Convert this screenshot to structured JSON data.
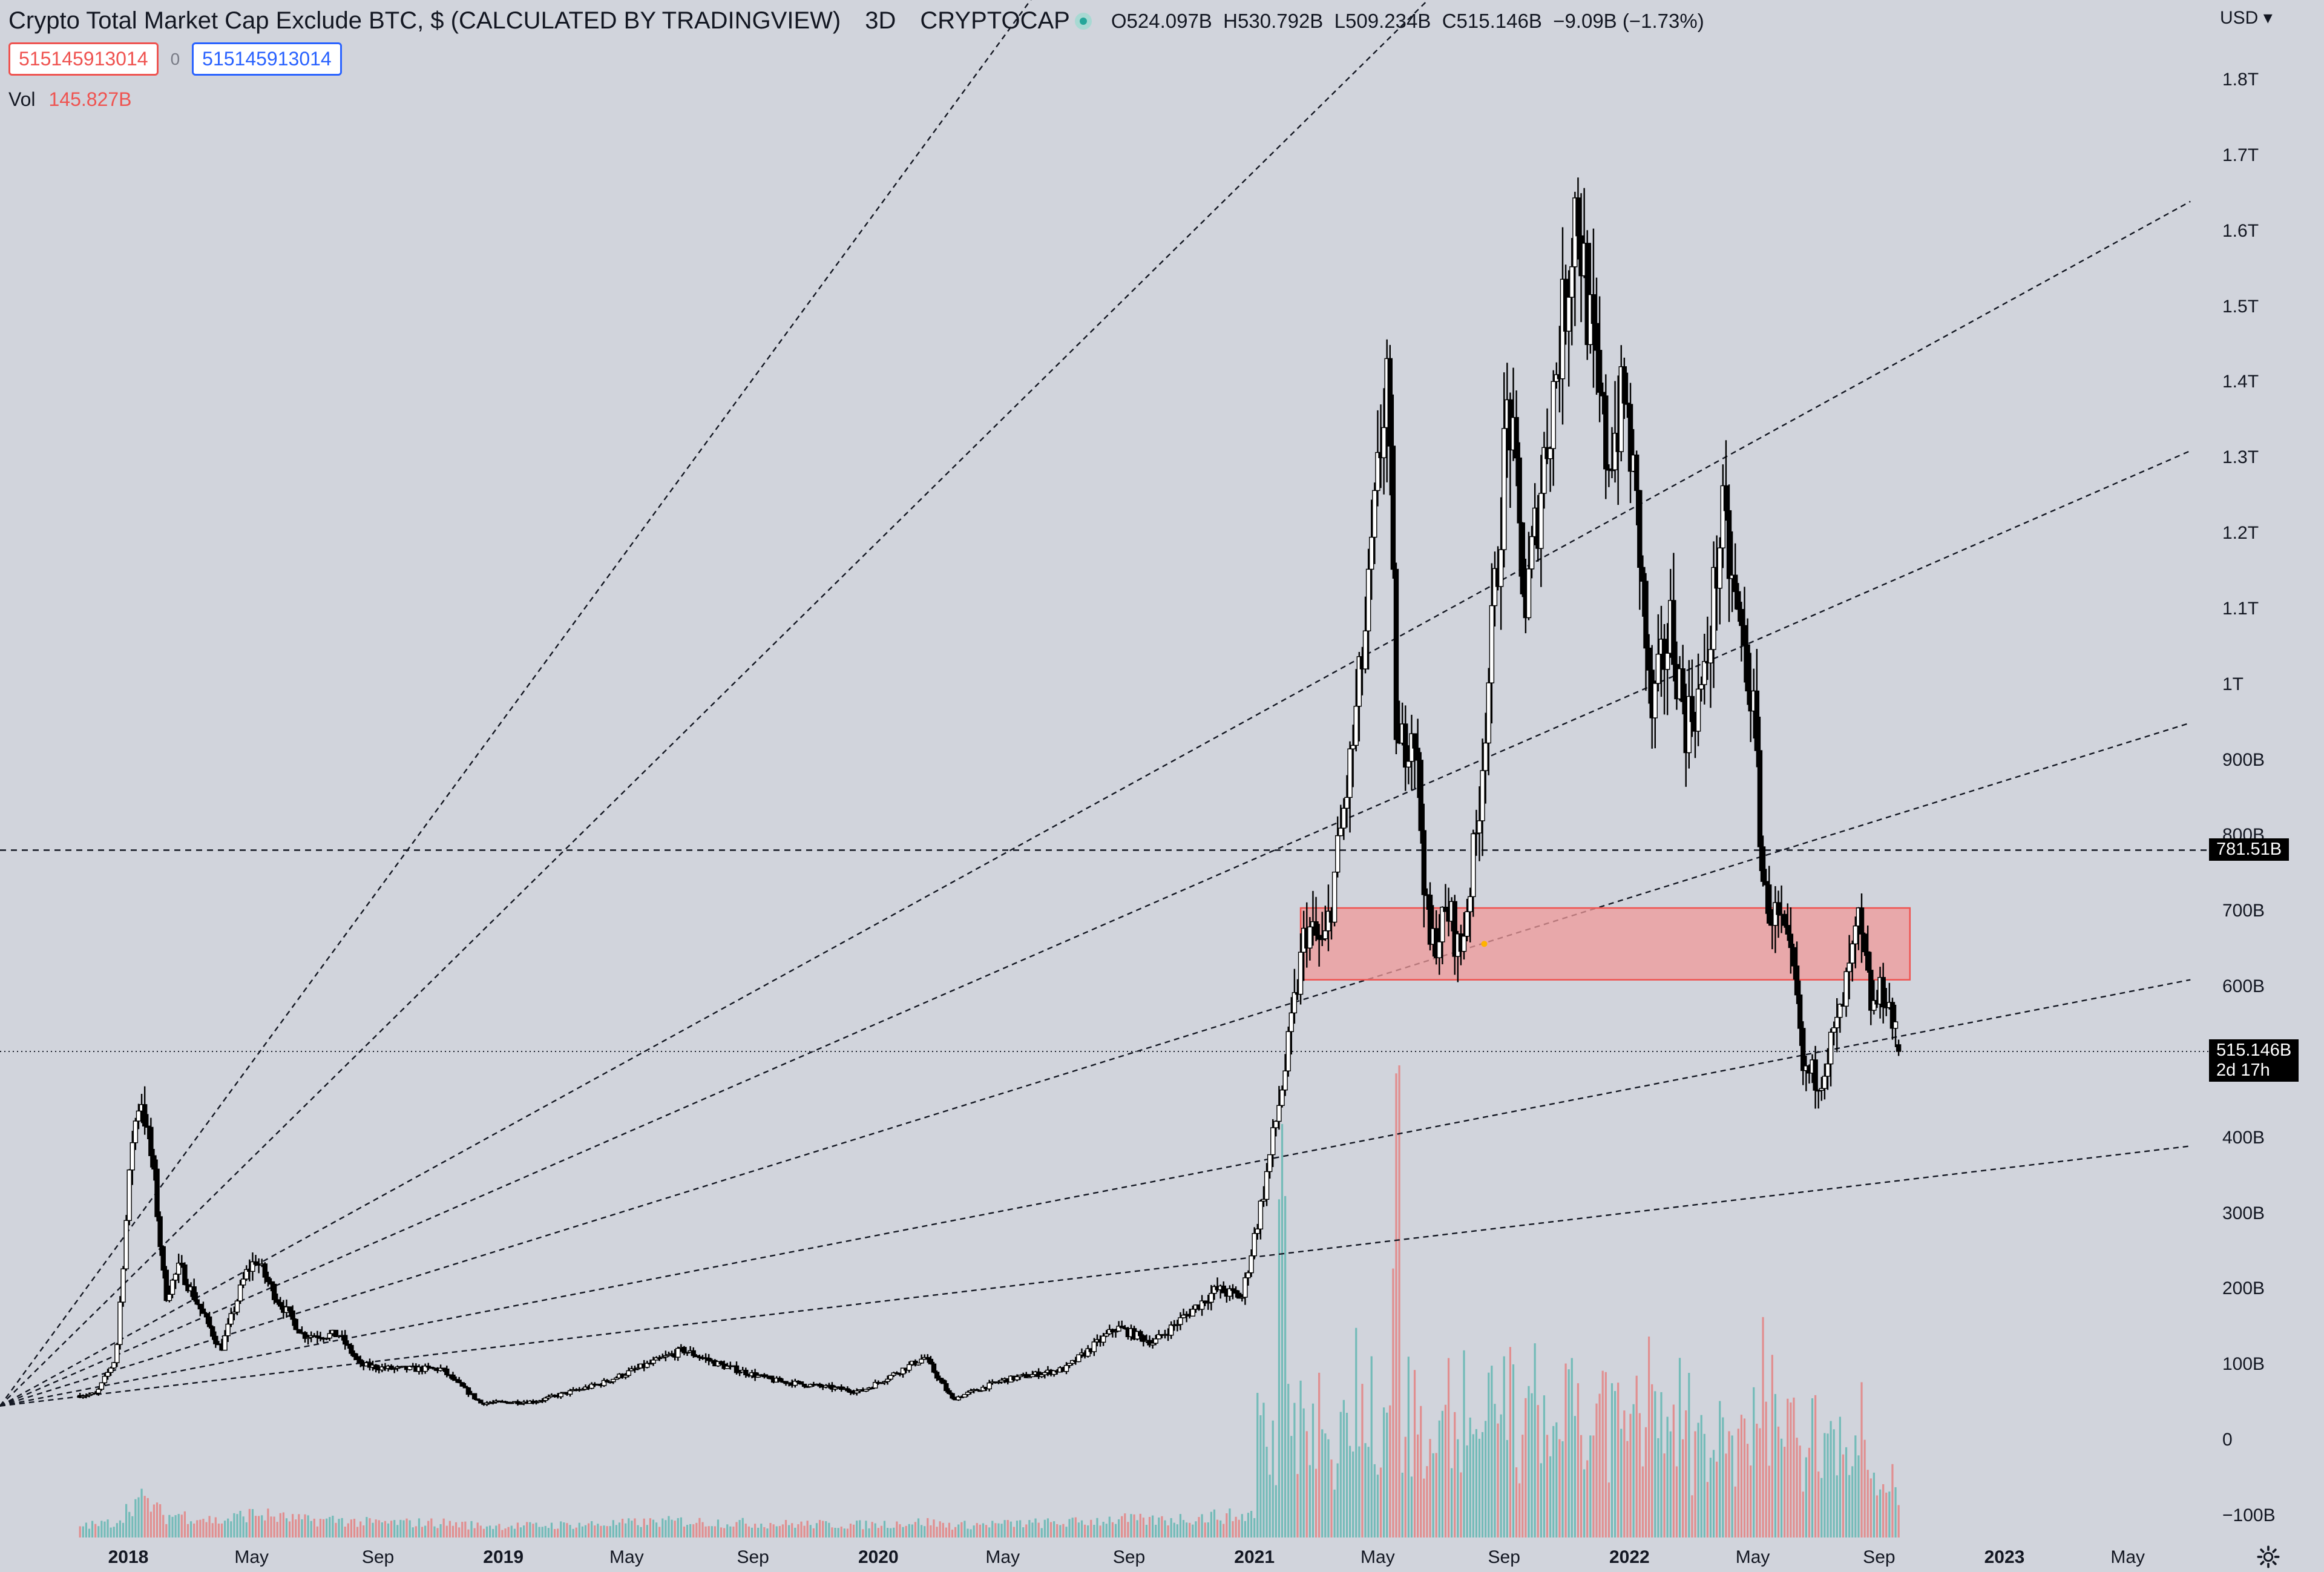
{
  "header": {
    "title": "Crypto Total Market Cap Exclude BTC, $ (CALCULATED BY TRADINGVIEW)",
    "interval": "3D",
    "exchange": "CRYPTOCAP",
    "market_status_color": "#26a69a",
    "ohlc": {
      "open_label": "O",
      "open": "524.097B",
      "high_label": "H",
      "high": "530.792B",
      "low_label": "L",
      "low": "509.234B",
      "close_label": "C",
      "close": "515.146B",
      "change": "−9.09B (−1.73%)"
    }
  },
  "order_badges": {
    "sell": "515145913014",
    "spread": "0",
    "buy": "515145913014"
  },
  "volume": {
    "label": "Vol",
    "value": "145.827B"
  },
  "price_axis": {
    "currency": "USD",
    "labels": [
      "1.8T",
      "1.7T",
      "1.6T",
      "1.5T",
      "1.4T",
      "1.3T",
      "1.2T",
      "1.1T",
      "1T",
      "900B",
      "800B",
      "700B",
      "600B",
      "400B",
      "300B",
      "200B",
      "100B",
      "0",
      "−100B"
    ]
  },
  "price_tags": {
    "horizontal_line": "781.51B",
    "last_price": "515.146B",
    "countdown": "2d 17h"
  },
  "time_axis": {
    "labels": [
      {
        "text": "2018",
        "bold": true
      },
      {
        "text": "May",
        "bold": false
      },
      {
        "text": "Sep",
        "bold": false
      },
      {
        "text": "2019",
        "bold": true
      },
      {
        "text": "May",
        "bold": false
      },
      {
        "text": "Sep",
        "bold": false
      },
      {
        "text": "2020",
        "bold": true
      },
      {
        "text": "May",
        "bold": false
      },
      {
        "text": "Sep",
        "bold": false
      },
      {
        "text": "2021",
        "bold": true
      },
      {
        "text": "May",
        "bold": false
      },
      {
        "text": "Sep",
        "bold": false
      },
      {
        "text": "2022",
        "bold": true
      },
      {
        "text": "May",
        "bold": false
      },
      {
        "text": "Sep",
        "bold": false
      },
      {
        "text": "2023",
        "bold": true
      },
      {
        "text": "May",
        "bold": false
      }
    ]
  },
  "icons": {
    "settings": "gear-icon"
  },
  "colors": {
    "background": "#d1d4dc",
    "candle": "#000000",
    "volume_up": "#26a69a",
    "volume_down": "#ef5350",
    "zone_fill": "#ef9a9a",
    "zone_border": "#ef5350"
  },
  "chart_data": {
    "type": "candlestick",
    "title": "Crypto Total Market Cap Exclude BTC, $ (CALCULATED BY TRADINGVIEW)",
    "xlabel": "",
    "ylabel": "",
    "y_unit": "USD",
    "ylim": [
      -110000000000,
      1880000000000
    ],
    "xlim": [
      "2017-11-15",
      "2023-07-01"
    ],
    "grid": false,
    "close_series": [
      {
        "date": "2017-11-15",
        "value": 60000000000
      },
      {
        "date": "2017-12-01",
        "value": 62000000000
      },
      {
        "date": "2017-12-20",
        "value": 110000000000
      },
      {
        "date": "2018-01-05",
        "value": 400000000000
      },
      {
        "date": "2018-01-13",
        "value": 460000000000
      },
      {
        "date": "2018-01-25",
        "value": 360000000000
      },
      {
        "date": "2018-02-06",
        "value": 190000000000
      },
      {
        "date": "2018-02-20",
        "value": 230000000000
      },
      {
        "date": "2018-03-10",
        "value": 180000000000
      },
      {
        "date": "2018-04-01",
        "value": 120000000000
      },
      {
        "date": "2018-04-25",
        "value": 220000000000
      },
      {
        "date": "2018-05-05",
        "value": 240000000000
      },
      {
        "date": "2018-05-25",
        "value": 190000000000
      },
      {
        "date": "2018-06-20",
        "value": 140000000000
      },
      {
        "date": "2018-07-25",
        "value": 140000000000
      },
      {
        "date": "2018-08-15",
        "value": 100000000000
      },
      {
        "date": "2018-09-15",
        "value": 95000000000
      },
      {
        "date": "2018-11-01",
        "value": 95000000000
      },
      {
        "date": "2018-12-10",
        "value": 50000000000
      },
      {
        "date": "2019-02-01",
        "value": 52000000000
      },
      {
        "date": "2019-04-05",
        "value": 75000000000
      },
      {
        "date": "2019-06-25",
        "value": 120000000000
      },
      {
        "date": "2019-08-01",
        "value": 100000000000
      },
      {
        "date": "2019-09-20",
        "value": 80000000000
      },
      {
        "date": "2019-12-15",
        "value": 65000000000
      },
      {
        "date": "2020-02-15",
        "value": 110000000000
      },
      {
        "date": "2020-03-13",
        "value": 55000000000
      },
      {
        "date": "2020-05-01",
        "value": 80000000000
      },
      {
        "date": "2020-07-01",
        "value": 95000000000
      },
      {
        "date": "2020-08-20",
        "value": 150000000000
      },
      {
        "date": "2020-09-25",
        "value": 130000000000
      },
      {
        "date": "2020-11-25",
        "value": 200000000000
      },
      {
        "date": "2020-12-20",
        "value": 190000000000
      },
      {
        "date": "2021-01-10",
        "value": 330000000000
      },
      {
        "date": "2021-02-01",
        "value": 500000000000
      },
      {
        "date": "2021-02-20",
        "value": 680000000000
      },
      {
        "date": "2021-03-10",
        "value": 650000000000
      },
      {
        "date": "2021-04-05",
        "value": 900000000000
      },
      {
        "date": "2021-04-20",
        "value": 1080000000000
      },
      {
        "date": "2021-05-10",
        "value": 1420000000000
      },
      {
        "date": "2021-05-20",
        "value": 900000000000
      },
      {
        "date": "2021-06-05",
        "value": 960000000000
      },
      {
        "date": "2021-06-20",
        "value": 650000000000
      },
      {
        "date": "2021-07-10",
        "value": 700000000000
      },
      {
        "date": "2021-07-20",
        "value": 640000000000
      },
      {
        "date": "2021-08-05",
        "value": 800000000000
      },
      {
        "date": "2021-08-25",
        "value": 1150000000000
      },
      {
        "date": "2021-09-05",
        "value": 1380000000000
      },
      {
        "date": "2021-09-22",
        "value": 1100000000000
      },
      {
        "date": "2021-10-10",
        "value": 1300000000000
      },
      {
        "date": "2021-10-30",
        "value": 1500000000000
      },
      {
        "date": "2021-11-10",
        "value": 1650000000000
      },
      {
        "date": "2021-11-25",
        "value": 1450000000000
      },
      {
        "date": "2021-12-10",
        "value": 1300000000000
      },
      {
        "date": "2021-12-28",
        "value": 1380000000000
      },
      {
        "date": "2022-01-10",
        "value": 1200000000000
      },
      {
        "date": "2022-01-22",
        "value": 950000000000
      },
      {
        "date": "2022-02-10",
        "value": 1080000000000
      },
      {
        "date": "2022-02-25",
        "value": 950000000000
      },
      {
        "date": "2022-03-15",
        "value": 1000000000000
      },
      {
        "date": "2022-04-01",
        "value": 1220000000000
      },
      {
        "date": "2022-04-15",
        "value": 1100000000000
      },
      {
        "date": "2022-05-01",
        "value": 980000000000
      },
      {
        "date": "2022-05-12",
        "value": 720000000000
      },
      {
        "date": "2022-05-28",
        "value": 680000000000
      },
      {
        "date": "2022-06-12",
        "value": 600000000000
      },
      {
        "date": "2022-06-18",
        "value": 490000000000
      },
      {
        "date": "2022-07-05",
        "value": 480000000000
      },
      {
        "date": "2022-07-25",
        "value": 560000000000
      },
      {
        "date": "2022-08-12",
        "value": 680000000000
      },
      {
        "date": "2022-08-25",
        "value": 570000000000
      },
      {
        "date": "2022-09-07",
        "value": 600000000000
      },
      {
        "date": "2022-09-20",
        "value": 515146000000
      }
    ],
    "volume_peaks": [
      {
        "date": "2021-01-28",
        "value": 380000000000
      },
      {
        "date": "2021-05-19",
        "value": 380000000000
      },
      {
        "date": "2022-05-12",
        "value": 200000000000
      },
      {
        "date": "2022-06-15",
        "value": 100000000000
      }
    ],
    "horizontal_line": 781510000000,
    "last_price": 515146000000,
    "zone": {
      "x_start": "2021-02-15",
      "x_end": "2022-10-01",
      "y_low": 610000000000,
      "y_high": 705000000000
    },
    "trendlines_anchor": {
      "date": "2017-11-15",
      "value": 30000000000
    },
    "trendlines_end_date": "2023-07-01",
    "trendlines_end_values": [
      4000000000000,
      2900000000000,
      1640000000000,
      1310000000000,
      950000000000,
      610000000000,
      390000000000
    ]
  }
}
